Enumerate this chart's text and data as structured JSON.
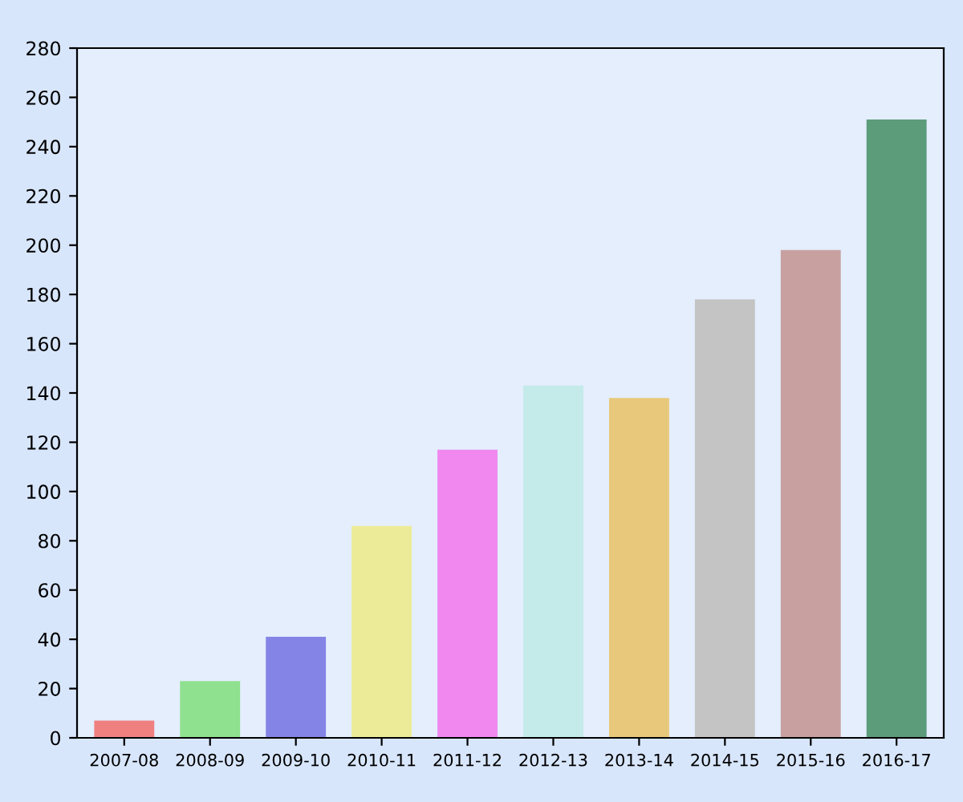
{
  "chart_data": {
    "type": "bar",
    "categories": [
      "2007-08",
      "2008-09",
      "2009-10",
      "2010-11",
      "2011-12",
      "2012-13",
      "2013-14",
      "2014-15",
      "2015-16",
      "2016-17"
    ],
    "values": [
      7,
      23,
      41,
      86,
      117,
      143,
      138,
      178,
      198,
      251
    ],
    "colors": [
      "#f08080",
      "#8fe08f",
      "#8484e6",
      "#ecec98",
      "#f088f0",
      "#c4eaea",
      "#e8c87a",
      "#c4c4c4",
      "#c8a0a0",
      "#5c9c7a"
    ],
    "ylim": [
      0,
      280
    ],
    "yticks": [
      0,
      20,
      40,
      60,
      80,
      100,
      120,
      140,
      160,
      180,
      200,
      220,
      240,
      260,
      280
    ],
    "grid": false,
    "legend": false
  }
}
